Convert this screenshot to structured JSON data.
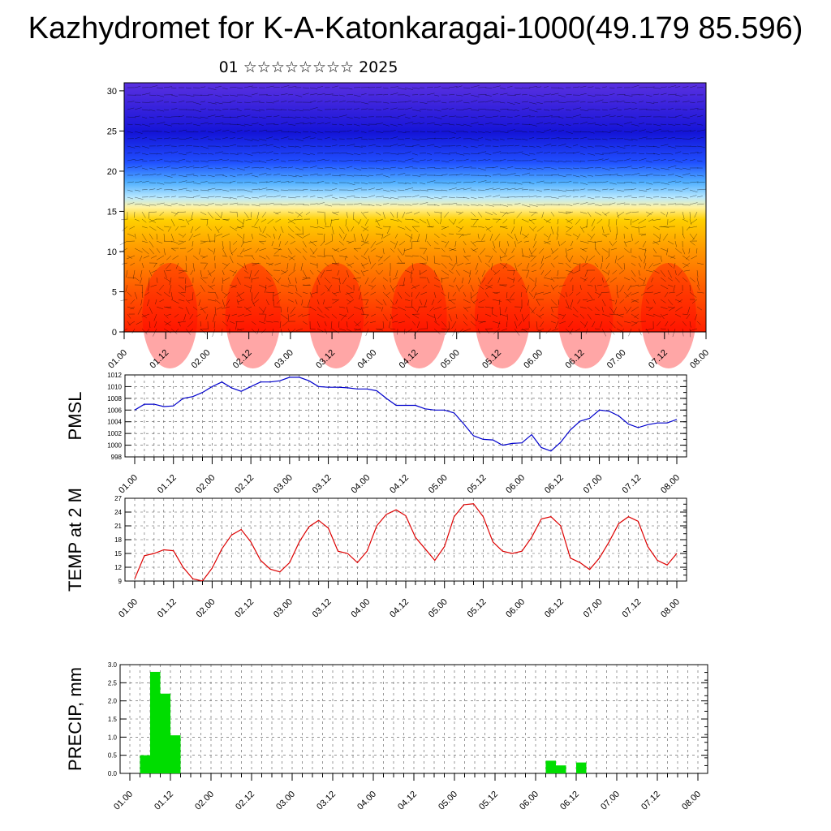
{
  "header": {
    "title": "Kazhydromet for K-A-Katonkaragai-1000(49.179 85.596)",
    "subtitle": "01 ☆☆☆☆☆☆☆☆ 2025"
  },
  "colors": {
    "pmsl": "#0000cc",
    "temp": "#dd0000",
    "precip": "#00dd00",
    "grid": "#555555"
  },
  "x_tick_labels": [
    "01.00",
    "01.12",
    "02.00",
    "02.12",
    "03.00",
    "03.12",
    "04.00",
    "04.12",
    "05.00",
    "05.12",
    "06.00",
    "06.12",
    "07.00",
    "07.12",
    "08.00"
  ],
  "chart_data": [
    {
      "type": "heatmap",
      "title": "",
      "xlabel": "",
      "ylabel": "",
      "xlim": [
        0,
        168
      ],
      "ylim": [
        0,
        31
      ],
      "yticks": [
        0,
        5,
        10,
        15,
        20,
        25,
        30
      ],
      "overlay": "wind barbs",
      "color_bands": [
        {
          "from": 0,
          "to": 5,
          "color": "#ff2000"
        },
        {
          "from": 5,
          "to": 10,
          "color": "#ff7a00"
        },
        {
          "from": 10,
          "to": 15,
          "color": "#ffc800"
        },
        {
          "from": 15,
          "to": 19,
          "color": "#a0e0ff"
        },
        {
          "from": 19,
          "to": 24,
          "color": "#1a40ff"
        },
        {
          "from": 24,
          "to": 31,
          "color": "#1010cc"
        }
      ]
    },
    {
      "type": "line",
      "ylabel": "PMSL",
      "ylim": [
        998,
        1012
      ],
      "yticks": [
        998,
        1000,
        1002,
        1004,
        1006,
        1008,
        1010,
        1012
      ],
      "x_step_hours": 3,
      "series": [
        {
          "values": [
            1006.0,
            1007.0,
            1007.0,
            1006.6,
            1006.7,
            1008.0,
            1008.3,
            1009.0,
            1010.0,
            1010.8,
            1009.8,
            1009.2,
            1010.0,
            1010.8,
            1010.8,
            1011.0,
            1011.6,
            1011.6,
            1011.0,
            1010.0,
            1009.9,
            1009.9,
            1009.8,
            1009.6,
            1009.6,
            1009.3,
            1008.0,
            1006.8,
            1006.8,
            1006.8,
            1006.2,
            1006.0,
            1006.0,
            1005.5,
            1003.6,
            1001.6,
            1001.0,
            1000.9,
            1000.0,
            1000.3,
            1000.4,
            1001.8,
            999.6,
            999.0,
            1000.5,
            1002.6,
            1004.1,
            1004.6,
            1006.0,
            1005.8,
            1005.0,
            1003.6,
            1003.0,
            1003.5,
            1003.8,
            1003.8,
            1004.4
          ]
        }
      ]
    },
    {
      "type": "line",
      "ylabel": "TEMP at 2 M",
      "ylim": [
        9,
        27
      ],
      "yticks": [
        9,
        12,
        15,
        18,
        21,
        24,
        27
      ],
      "x_step_hours": 3,
      "series": [
        {
          "values": [
            9.5,
            14.5,
            15.0,
            15.8,
            15.6,
            12.0,
            9.5,
            9.0,
            11.8,
            16.0,
            19.0,
            20.2,
            17.5,
            13.5,
            11.6,
            11.0,
            13.0,
            17.5,
            20.8,
            22.2,
            20.5,
            15.5,
            15.0,
            13.0,
            15.5,
            21.0,
            23.5,
            24.5,
            23.2,
            18.5,
            16.0,
            13.5,
            16.5,
            23.0,
            25.6,
            25.8,
            23.0,
            17.5,
            15.5,
            15.0,
            15.5,
            18.5,
            22.5,
            23.0,
            21.0,
            14.0,
            13.0,
            11.5,
            14.0,
            17.5,
            21.5,
            23.0,
            22.0,
            16.5,
            13.5,
            12.5,
            15.0
          ]
        }
      ]
    },
    {
      "type": "bar",
      "ylabel": "PRECIP, mm",
      "ylim": [
        0,
        3.0
      ],
      "yticks": [
        "0.0",
        "0.5",
        "1.0",
        "1.5",
        "2.0",
        "2.5",
        "3.0"
      ],
      "x_step_hours": 3,
      "series": [
        {
          "values": [
            0.0,
            0.5,
            2.8,
            2.2,
            1.05,
            0,
            0,
            0,
            0,
            0,
            0,
            0,
            0,
            0,
            0,
            0,
            0,
            0,
            0,
            0,
            0,
            0,
            0,
            0,
            0,
            0,
            0,
            0,
            0,
            0,
            0,
            0,
            0,
            0,
            0,
            0,
            0,
            0,
            0,
            0,
            0,
            0.35,
            0.22,
            0,
            0.3,
            0,
            0,
            0,
            0,
            0,
            0,
            0,
            0,
            0,
            0,
            0,
            0
          ]
        }
      ]
    }
  ]
}
